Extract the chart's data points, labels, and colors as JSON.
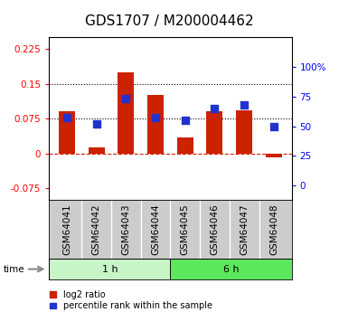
{
  "title": "GDS1707 / M200004462",
  "categories": [
    "GSM64041",
    "GSM64042",
    "GSM64043",
    "GSM64044",
    "GSM64045",
    "GSM64046",
    "GSM64047",
    "GSM64048"
  ],
  "log2_ratio": [
    0.09,
    0.012,
    0.175,
    0.125,
    0.035,
    0.09,
    0.092,
    -0.008
  ],
  "percentile_rank": [
    57,
    52,
    73,
    57,
    55,
    65,
    68,
    50
  ],
  "groups": [
    {
      "label": "1 h",
      "start": 0,
      "end": 4,
      "color": "#c8f5c8"
    },
    {
      "label": "6 h",
      "start": 4,
      "end": 8,
      "color": "#5ce85c"
    }
  ],
  "left_ylim": [
    -0.1,
    0.25
  ],
  "right_ylim": [
    -12,
    125
  ],
  "left_yticks": [
    -0.075,
    0,
    0.075,
    0.15,
    0.225
  ],
  "right_yticks": [
    0,
    25,
    50,
    75,
    100
  ],
  "hlines": [
    0.075,
    0.15
  ],
  "bar_color": "#cc2200",
  "dot_color": "#2233cc",
  "zero_line_color": "#cc2200",
  "label_bg_color": "#cccccc",
  "background_color": "#ffffff",
  "title_fontsize": 11,
  "tick_fontsize": 7.5,
  "dot_size": 35,
  "bar_width": 0.55
}
